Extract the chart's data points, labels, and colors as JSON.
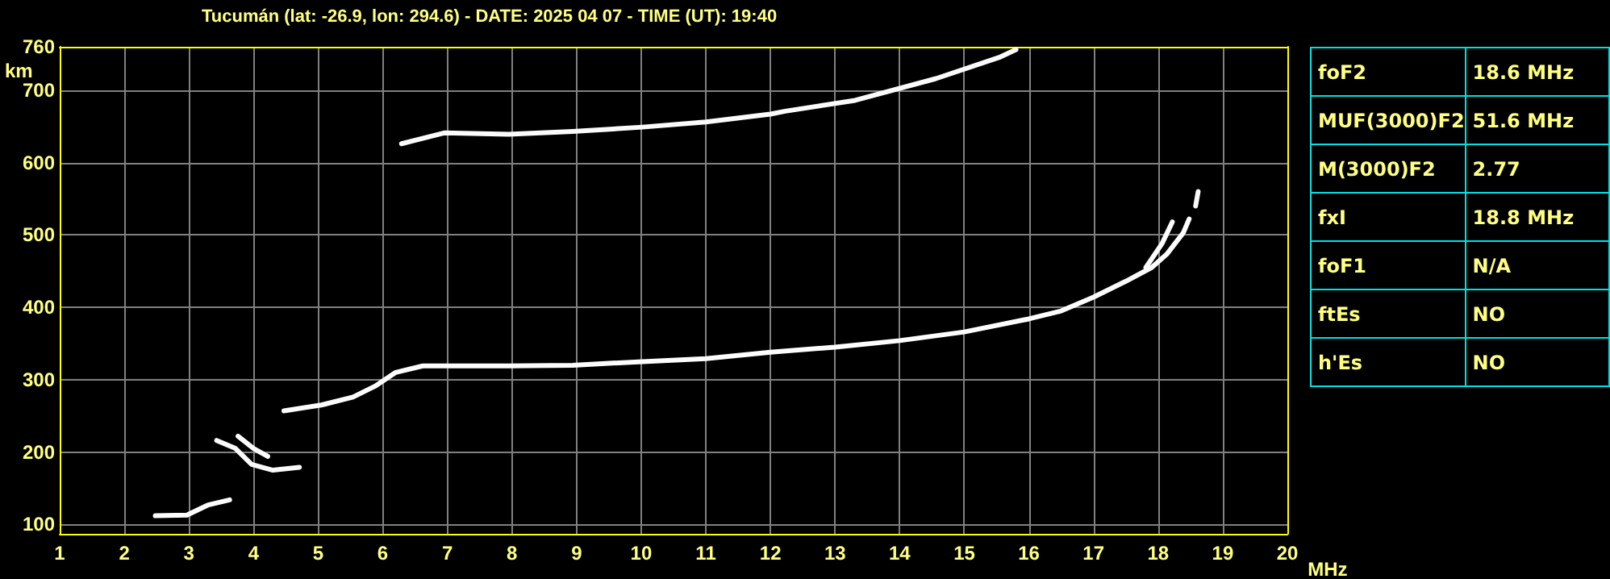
{
  "chart_data": [
    {
      "type": "line",
      "title": "Tucumán (lat: -26.9, lon: 294.6) - DATE: 2025 04 07 - TIME (UT): 19:40",
      "xlabel": "MHz",
      "ylabel": "km",
      "xlim": [
        1,
        20
      ],
      "xticks": [
        1,
        2,
        3,
        4,
        5,
        6,
        7,
        8,
        9,
        10,
        11,
        12,
        13,
        14,
        15,
        16,
        17,
        18,
        19,
        20
      ],
      "ylim": [
        87,
        760
      ],
      "yticks": [
        100,
        200,
        300,
        400,
        500,
        600,
        700,
        760
      ],
      "grid": true,
      "series": [
        {
          "color": "#ffffff",
          "x": [
            2.48,
            2.97,
            3.3,
            3.63
          ],
          "values": [
            112,
            113,
            127,
            134
          ]
        },
        {
          "color": "#fefefe",
          "x": [
            3.76,
            4.0,
            4.22
          ],
          "values": [
            222,
            205,
            194
          ]
        },
        {
          "color": "#fdfdfd",
          "x": [
            4.47,
            5.05,
            5.54,
            5.88,
            6.2,
            6.62,
            7.95,
            8.94,
            10.02,
            11.0,
            12.0,
            13.0,
            14.0,
            15.0,
            16.0,
            16.5,
            17.0,
            17.5,
            17.9,
            18.14,
            18.39,
            18.48
          ],
          "values": [
            257,
            265,
            276,
            291,
            310,
            319,
            319,
            320,
            325,
            329,
            338,
            345,
            354,
            366,
            384,
            395,
            414,
            436,
            455,
            474,
            503,
            522
          ]
        },
        {
          "color": "#fcfcfc",
          "x": [
            17.81,
            18.06,
            18.22
          ],
          "values": [
            455,
            488,
            518
          ]
        },
        {
          "color": "#fbfbfb",
          "x": [
            6.29,
            6.95,
            7.95,
            8.94,
            10.02,
            11.0,
            12.0,
            12.23,
            13.31,
            14.56,
            15.56,
            15.8
          ],
          "values": [
            626,
            641,
            639,
            643,
            649,
            656,
            667,
            671,
            686,
            716,
            746,
            756
          ]
        },
        {
          "color": "#fafafa",
          "x": [
            3.43,
            3.72,
            3.97,
            4.3,
            4.71
          ],
          "values": [
            216,
            205,
            183,
            175,
            179
          ]
        },
        {
          "color": "#f9f9f9",
          "x": [
            18.58,
            18.62
          ],
          "values": [
            540,
            560
          ]
        }
      ]
    },
    {
      "type": "other",
      "annotations": [
        "foF2",
        "18.6 MHz",
        "MUF(3000)F2",
        "51.6 MHz",
        "M(3000)F2",
        "2.77",
        "fxI",
        "18.8 MHz",
        "foF1",
        "N/A",
        "ftEs",
        "NO",
        "h'Es",
        "NO"
      ]
    }
  ]
}
